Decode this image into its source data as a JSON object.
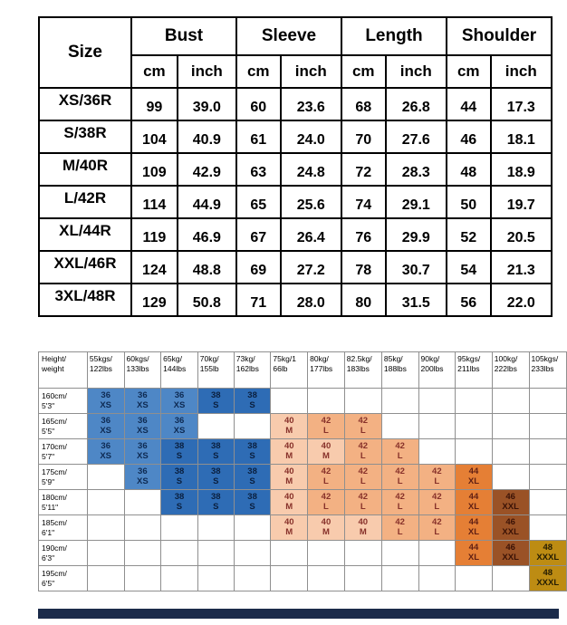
{
  "page": {
    "background": "#ffffff"
  },
  "size_table": {
    "corner_label": "Size",
    "group_headers": [
      "Bust",
      "Sleeve",
      "Length",
      "Shoulder"
    ],
    "unit_headers": [
      "cm",
      "inch",
      "cm",
      "inch",
      "cm",
      "inch",
      "cm",
      "inch"
    ],
    "rows": [
      {
        "size": "XS/36R",
        "values": [
          "99",
          "39.0",
          "60",
          "23.6",
          "68",
          "26.8",
          "44",
          "17.3"
        ]
      },
      {
        "size": "S/38R",
        "values": [
          "104",
          "40.9",
          "61",
          "24.0",
          "70",
          "27.6",
          "46",
          "18.1"
        ]
      },
      {
        "size": "M/40R",
        "values": [
          "109",
          "42.9",
          "63",
          "24.8",
          "72",
          "28.3",
          "48",
          "18.9"
        ]
      },
      {
        "size": "L/42R",
        "values": [
          "114",
          "44.9",
          "65",
          "25.6",
          "74",
          "29.1",
          "50",
          "19.7"
        ]
      },
      {
        "size": "XL/44R",
        "values": [
          "119",
          "46.9",
          "67",
          "26.4",
          "76",
          "29.9",
          "52",
          "20.5"
        ]
      },
      {
        "size": "XXL/46R",
        "values": [
          "124",
          "48.8",
          "69",
          "27.2",
          "78",
          "30.7",
          "54",
          "21.3"
        ]
      },
      {
        "size": "3XL/48R",
        "values": [
          "129",
          "50.8",
          "71",
          "28.0",
          "80",
          "31.5",
          "56",
          "22.0"
        ]
      }
    ]
  },
  "fit_table": {
    "corner_label": "Height/\nweight",
    "weight_headers": [
      "55kgs/\n122lbs",
      "60kgs/\n133lbs",
      "65kg/\n144lbs",
      "70kg/\n155lb",
      "73kg/\n162lbs",
      "75kg/1\n66lb",
      "80kg/\n177lbs",
      "82.5kg/\n183lbs",
      "85kg/\n188lbs",
      "90kg/\n200lbs",
      "95kgs/\n211lbs",
      "100kg/\n222lbs",
      "105kgs/\n233lbs"
    ],
    "rows": [
      {
        "height": "160cm/\n5'3\"",
        "cells": [
          "36\nXS",
          "36\nXS",
          "36\nXS",
          "38\nS",
          "38\nS",
          "",
          "",
          "",
          "",
          "",
          "",
          "",
          ""
        ]
      },
      {
        "height": "165cm/\n5'5\"",
        "cells": [
          "36\nXS",
          "36\nXS",
          "36\nXS",
          "",
          "",
          "40\nM",
          "42\nL",
          "42\nL",
          "",
          "",
          "",
          "",
          ""
        ]
      },
      {
        "height": "170cm/\n5'7\"",
        "cells": [
          "36\nXS",
          "36\nXS",
          "38\nS",
          "38\nS",
          "38\nS",
          "40\nM",
          "40\nM",
          "42\nL",
          "42\nL",
          "",
          "",
          "",
          ""
        ]
      },
      {
        "height": "175cm/\n5'9\"",
        "cells": [
          "",
          "36\nXS",
          "38\nS",
          "38\nS",
          "38\nS",
          "40\nM",
          "42\nL",
          "42\nL",
          "42\nL",
          "42\nL",
          "44\nXL",
          "",
          ""
        ]
      },
      {
        "height": "180cm/\n5'11\"",
        "cells": [
          "",
          "",
          "38\nS",
          "38\nS",
          "38\nS",
          "40\nM",
          "42\nL",
          "42\nL",
          "42\nL",
          "42\nL",
          "44\nXL",
          "46\nXXL",
          ""
        ]
      },
      {
        "height": "185cm/\n6'1\"",
        "cells": [
          "",
          "",
          "",
          "",
          "",
          "40\nM",
          "40\nM",
          "40\nM",
          "42\nL",
          "42\nL",
          "44\nXL",
          "46\nXXL",
          ""
        ]
      },
      {
        "height": "190cm/\n6'3\"",
        "cells": [
          "",
          "",
          "",
          "",
          "",
          "",
          "",
          "",
          "",
          "",
          "44\nXL",
          "46\nXXL",
          "48\nXXXL"
        ]
      },
      {
        "height": "195cm/\n6'5\"",
        "cells": [
          "",
          "",
          "",
          "",
          "",
          "",
          "",
          "",
          "",
          "",
          "",
          "",
          "48\nXXXL"
        ]
      }
    ],
    "size_colors": {
      "36": {
        "bg": "#4e87c6",
        "fg": "#0e2a52"
      },
      "38": {
        "bg": "#2e6cb5",
        "fg": "#0a1f3e"
      },
      "40": {
        "bg": "#f8cbad",
        "fg": "#87312a"
      },
      "42": {
        "bg": "#f3b183",
        "fg": "#87312a"
      },
      "44": {
        "bg": "#e57f35",
        "fg": "#5f1f14"
      },
      "46": {
        "bg": "#9a5226",
        "fg": "#3a1206"
      },
      "48": {
        "bg": "#bd8c13",
        "fg": "#241c02"
      }
    }
  },
  "footer": {
    "bar_color": "#1b2b4a"
  }
}
